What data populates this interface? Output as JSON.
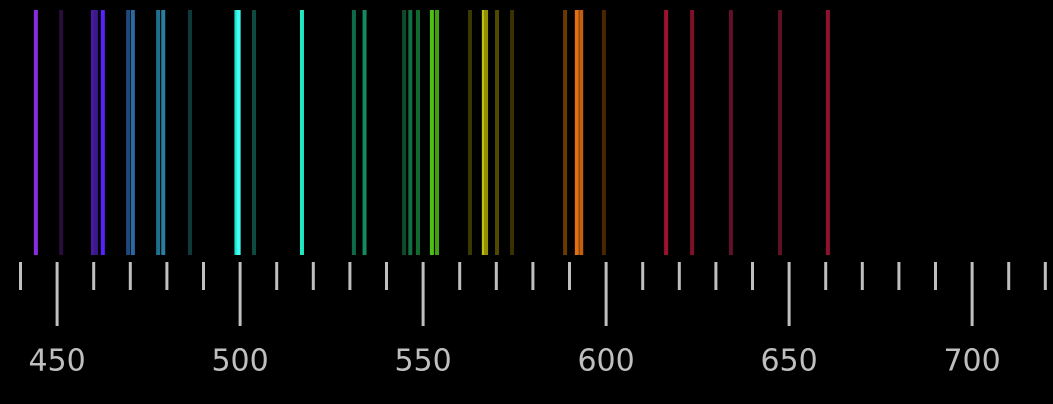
{
  "chart_data": {
    "type": "spectrum",
    "x": [
      444.2,
      451.1,
      459.8,
      460.6,
      462.5,
      469.4,
      470.7,
      477.6,
      479.0,
      486.3,
      499.0,
      499.6,
      503.8,
      516.9,
      531.1,
      534.0,
      544.8,
      546.5,
      548.6,
      552.4,
      553.8,
      562.8,
      566.6,
      567.2,
      570.2,
      574.3,
      588.8,
      592.0,
      593.2,
      599.4,
      616.4,
      623.5,
      634.1,
      647.5,
      660.6
    ],
    "colors": [
      "#8a2be2",
      "#2a0d3a",
      "#4a1a9a",
      "#3a1890",
      "#5a20ff",
      "#1e4a7a",
      "#2a6aa0",
      "#1f6f8f",
      "#2a7fa0",
      "#0f3a3a",
      "#20e0d0",
      "#40fff0",
      "#0f4a40",
      "#20e8c0",
      "#0f6a4a",
      "#158a60",
      "#0f4a2a",
      "#107040",
      "#106a30",
      "#50c010",
      "#40a010",
      "#3a3a00",
      "#c0c010",
      "#909000",
      "#504a00",
      "#3a3000",
      "#6a3a00",
      "#e07010",
      "#c06010",
      "#4a2500",
      "#a01030",
      "#801028",
      "#601028",
      "#601024",
      "#901030"
    ],
    "xlim": [
      434.4,
      722.1
    ],
    "xticks": [
      450,
      500,
      550,
      600,
      650,
      700
    ],
    "minor_xticks": [
      440,
      460,
      470,
      480,
      490,
      510,
      520,
      530,
      540,
      560,
      570,
      580,
      590,
      610,
      620,
      630,
      640,
      660,
      670,
      680,
      690,
      710,
      720
    ]
  }
}
